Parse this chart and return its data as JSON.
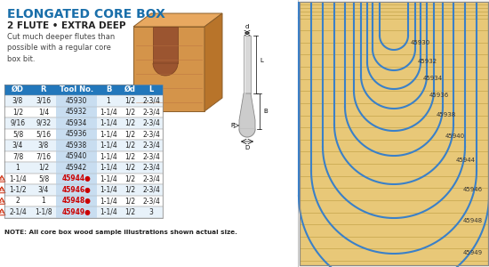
{
  "title": "ELONGATED CORE BOX",
  "subtitle": "2 FLUTE • EXTRA DEEP",
  "description": "Cut much deeper flutes than\npossible with a regular core\nbox bit.",
  "bg_color": "#f0f0f0",
  "header_bg": "#2277bb",
  "header_fg": "#ffffff",
  "wood_bg": "#e8cb8a",
  "wood_light": "#f0d89a",
  "wood_dark": "#c8a860",
  "wood_grain": "#d4b870",
  "blue_line": "#3a80c8",
  "col_headers": [
    "ØD",
    "R",
    "Tool No.",
    "B",
    "Ød",
    "L"
  ],
  "rows": [
    [
      "3/8",
      "3/16",
      "45930",
      "1",
      "1/2",
      "2-3/4"
    ],
    [
      "1/2",
      "1/4",
      "45932",
      "1-1/4",
      "1/2",
      "2-3/4"
    ],
    [
      "9/16",
      "9/32",
      "45934",
      "1-1/4",
      "1/2",
      "2-3/4"
    ],
    [
      "5/8",
      "5/16",
      "45936",
      "1-1/4",
      "1/2",
      "2-3/4"
    ],
    [
      "3/4",
      "3/8",
      "45938",
      "1-1/4",
      "1/2",
      "2-3/4"
    ],
    [
      "7/8",
      "7/16",
      "45940",
      "1-1/4",
      "1/2",
      "2-3/4"
    ],
    [
      "1",
      "1/2",
      "45942",
      "1-1/4",
      "1/2",
      "2-3/4"
    ],
    [
      "1-1/4",
      "5/8",
      "45944●",
      "1-1/4",
      "1/2",
      "2-3/4"
    ],
    [
      "1-1/2",
      "3/4",
      "45946●",
      "1-1/4",
      "1/2",
      "2-3/4"
    ],
    [
      "2",
      "1",
      "45948●",
      "1-1/4",
      "1/2",
      "2-3/4"
    ],
    [
      "2-1/4",
      "1-1/8",
      "45949●",
      "1-1/4",
      "1/2",
      "3"
    ]
  ],
  "special_rows": [
    7,
    8,
    9,
    10
  ],
  "special_icons": [
    "20",
    "18",
    "14",
    "14"
  ],
  "note": "NOTE: All core box wood sample illustrations shown actual size.",
  "tool_labels": [
    "45930",
    "45932",
    "45934",
    "45936",
    "45938",
    "45940",
    "45944",
    "45946",
    "45948",
    "45949"
  ]
}
